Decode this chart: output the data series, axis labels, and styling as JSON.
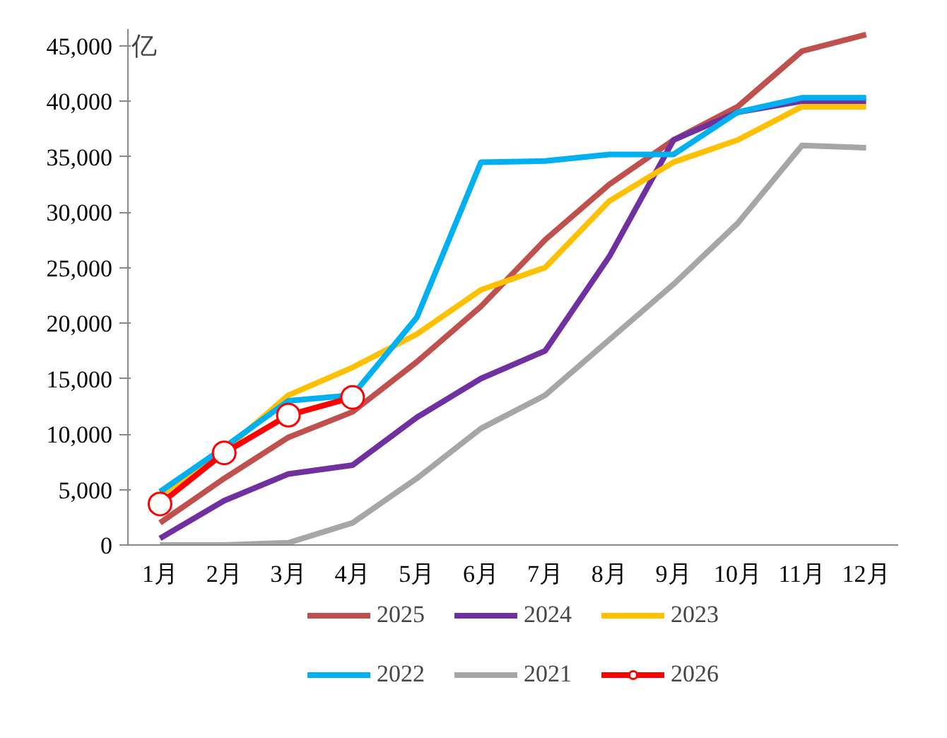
{
  "chart_data": {
    "type": "line",
    "ylabel": "亿",
    "categories": [
      "1月",
      "2月",
      "3月",
      "4月",
      "5月",
      "6月",
      "7月",
      "8月",
      "9月",
      "10月",
      "11月",
      "12月"
    ],
    "ylim": [
      0,
      46500
    ],
    "yticks": [
      {
        "value": 0,
        "label": "0"
      },
      {
        "value": 5000,
        "label": "5,000"
      },
      {
        "value": 10000,
        "label": "10,000"
      },
      {
        "value": 15000,
        "label": "15,000"
      },
      {
        "value": 20000,
        "label": "20,000"
      },
      {
        "value": 25000,
        "label": "25,000"
      },
      {
        "value": 30000,
        "label": "30,000"
      },
      {
        "value": 35000,
        "label": "35,000"
      },
      {
        "value": 40000,
        "label": "40,000"
      },
      {
        "value": 45000,
        "label": "45,000"
      }
    ],
    "grid": false,
    "legend": "bottom",
    "line_style": "solid",
    "series": [
      {
        "name": "2025",
        "color": "#c0504d",
        "values": [
          2000,
          6000,
          9700,
          12000,
          16500,
          21500,
          27500,
          32500,
          36500,
          39500,
          44500,
          46000
        ]
      },
      {
        "name": "2024",
        "color": "#7030a0",
        "values": [
          600,
          4000,
          6400,
          7200,
          11500,
          15000,
          17500,
          26000,
          36500,
          39000,
          40000,
          40000
        ]
      },
      {
        "name": "2023",
        "color": "#ffc000",
        "values": [
          4500,
          8500,
          13500,
          16000,
          19000,
          23000,
          25000,
          31000,
          34500,
          36500,
          39500,
          39500
        ]
      },
      {
        "name": "2022",
        "color": "#00b0f0",
        "values": [
          4800,
          8800,
          13000,
          13500,
          20500,
          34500,
          34600,
          35200,
          35200,
          39000,
          40300,
          40300
        ]
      },
      {
        "name": "2021",
        "color": "#a6a6a6",
        "values": [
          0,
          0,
          200,
          2000,
          6000,
          10500,
          13500,
          18500,
          23500,
          29000,
          36000,
          35800
        ]
      },
      {
        "name": "2026",
        "color": "#ff0000",
        "marker": "circle",
        "values": [
          3700,
          8300,
          11700,
          13300,
          null,
          null,
          null,
          null,
          null,
          null,
          null,
          null
        ]
      }
    ]
  }
}
